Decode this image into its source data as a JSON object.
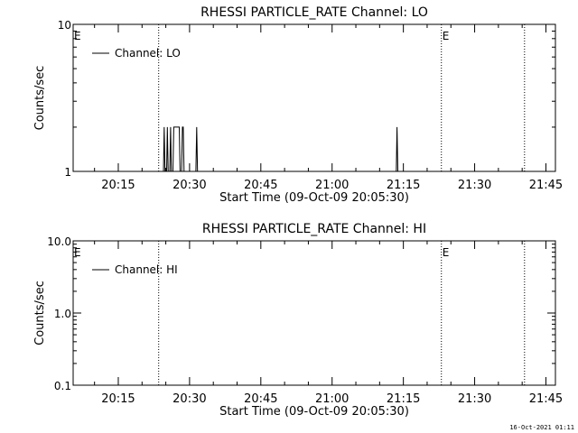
{
  "footer": {
    "timestamp": "16-Oct-2021 01:11"
  },
  "chart_data": [
    {
      "type": "line",
      "title": "RHESSI PARTICLE_RATE Channel: LO",
      "xlabel": "Start Time (09-Oct-09 20:05:30)",
      "ylabel": "Counts/sec",
      "y_scale": "log",
      "xlim": [
        "20:05:30",
        "21:47:00"
      ],
      "ylim": [
        1,
        10
      ],
      "y_tick_labels": [
        "1",
        "10"
      ],
      "x_tick_labels": [
        "20:15",
        "20:30",
        "20:45",
        "21:00",
        "21:15",
        "21:30",
        "21:45"
      ],
      "legend": {
        "position": "top-left",
        "entries": [
          "Channel: LO"
        ]
      },
      "vertical_markers": [
        {
          "time": "20:23:30",
          "label": ""
        },
        {
          "time": "21:23:00",
          "label": "E"
        },
        {
          "time": "21:40:30",
          "label": ""
        }
      ],
      "edge_labels": [
        {
          "time": "20:05:30",
          "label": "E"
        }
      ],
      "series": [
        {
          "name": "Channel: LO",
          "points": [
            [
              "20:05:30",
              1
            ],
            [
              "20:24:30",
              1
            ],
            [
              "20:24:40",
              2
            ],
            [
              "20:24:50",
              1
            ],
            [
              "20:25:10",
              1
            ],
            [
              "20:25:20",
              2
            ],
            [
              "20:25:30",
              1
            ],
            [
              "20:25:50",
              1
            ],
            [
              "20:26:00",
              2
            ],
            [
              "20:26:10",
              1
            ],
            [
              "20:26:30",
              1
            ],
            [
              "20:26:40",
              2
            ],
            [
              "20:27:50",
              2
            ],
            [
              "20:28:00",
              1
            ],
            [
              "20:28:20",
              1
            ],
            [
              "20:28:30",
              2
            ],
            [
              "20:28:40",
              2
            ],
            [
              "20:28:50",
              1
            ],
            [
              "20:31:20",
              1
            ],
            [
              "20:31:30",
              2
            ],
            [
              "20:31:40",
              1
            ],
            [
              "21:13:30",
              1
            ],
            [
              "21:13:40",
              2
            ],
            [
              "21:13:50",
              1
            ],
            [
              "21:47:00",
              1
            ]
          ]
        }
      ]
    },
    {
      "type": "line",
      "title": "RHESSI PARTICLE_RATE Channel: HI",
      "xlabel": "Start Time (09-Oct-09 20:05:30)",
      "ylabel": "Counts/sec",
      "y_scale": "log",
      "xlim": [
        "20:05:30",
        "21:47:00"
      ],
      "ylim": [
        0.1,
        10
      ],
      "y_tick_labels": [
        "0.1",
        "1.0",
        "10.0"
      ],
      "x_tick_labels": [
        "20:15",
        "20:30",
        "20:45",
        "21:00",
        "21:15",
        "21:30",
        "21:45"
      ],
      "legend": {
        "position": "top-left",
        "entries": [
          "Channel: HI"
        ]
      },
      "vertical_markers": [
        {
          "time": "20:23:30",
          "label": ""
        },
        {
          "time": "21:23:00",
          "label": "E"
        },
        {
          "time": "21:40:30",
          "label": ""
        }
      ],
      "edge_labels": [
        {
          "time": "20:05:30",
          "label": "E"
        }
      ],
      "series": [
        {
          "name": "Channel: HI",
          "points": []
        }
      ]
    }
  ]
}
